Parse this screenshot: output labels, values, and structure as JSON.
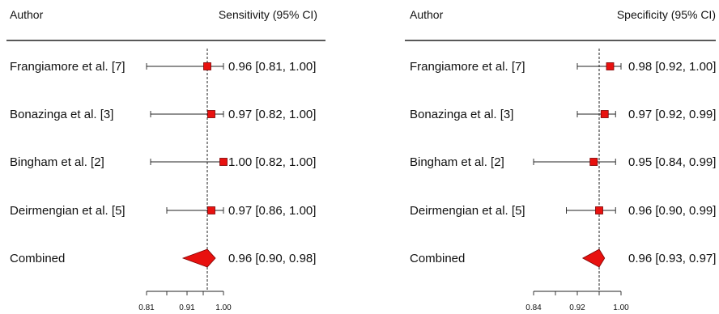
{
  "chart_data": [
    {
      "type": "forest",
      "header_left": "Author",
      "header_right": "Sensitivity (95% CI)",
      "studies": [
        {
          "label": "Frangiamore et al. [7]",
          "estimate": 0.96,
          "lower": 0.81,
          "upper": 1.0,
          "ci_text": "0.96 [0.81, 1.00]"
        },
        {
          "label": "Bonazinga et al. [3]",
          "estimate": 0.97,
          "lower": 0.82,
          "upper": 1.0,
          "ci_text": "0.97 [0.82, 1.00]"
        },
        {
          "label": "Bingham et al. [2]",
          "estimate": 1.0,
          "lower": 0.82,
          "upper": 1.0,
          "ci_text": "1.00 [0.82, 1.00]"
        },
        {
          "label": "Deirmengian et al. [5]",
          "estimate": 0.97,
          "lower": 0.86,
          "upper": 1.0,
          "ci_text": "0.97 [0.86, 1.00]"
        }
      ],
      "combined": {
        "label": "Combined",
        "estimate": 0.96,
        "lower": 0.9,
        "upper": 0.98,
        "ci_text": "0.96 [0.90, 0.98]"
      },
      "xlim": [
        0.81,
        1.0
      ],
      "ticks": [
        0.81,
        0.86,
        0.91,
        0.95,
        1.0
      ],
      "tick_labels": [
        "0.81",
        "",
        "0.91",
        "",
        "1.00"
      ],
      "reference_line": 0.96
    },
    {
      "type": "forest",
      "header_left": "Author",
      "header_right": "Specificity (95% CI)",
      "studies": [
        {
          "label": "Frangiamore et al. [7]",
          "estimate": 0.98,
          "lower": 0.92,
          "upper": 1.0,
          "ci_text": "0.98 [0.92, 1.00]"
        },
        {
          "label": "Bonazinga et al. [3]",
          "estimate": 0.97,
          "lower": 0.92,
          "upper": 0.99,
          "ci_text": "0.97 [0.92, 0.99]"
        },
        {
          "label": "Bingham et al. [2]",
          "estimate": 0.95,
          "lower": 0.84,
          "upper": 0.99,
          "ci_text": "0.95 [0.84, 0.99]"
        },
        {
          "label": "Deirmengian et al. [5]",
          "estimate": 0.96,
          "lower": 0.9,
          "upper": 0.99,
          "ci_text": "0.96 [0.90, 0.99]"
        }
      ],
      "combined": {
        "label": "Combined",
        "estimate": 0.96,
        "lower": 0.93,
        "upper": 0.97,
        "ci_text": "0.96 [0.93, 0.97]"
      },
      "xlim": [
        0.84,
        1.0
      ],
      "ticks": [
        0.84,
        0.88,
        0.92,
        0.96,
        1.0
      ],
      "tick_labels": [
        "0.84",
        "",
        "0.92",
        "",
        "1.00"
      ],
      "reference_line": 0.96
    }
  ],
  "colors": {
    "marker_fill": "#e8110f",
    "marker_stroke": "#7a0000",
    "line": "#222222",
    "text": "#111111"
  }
}
